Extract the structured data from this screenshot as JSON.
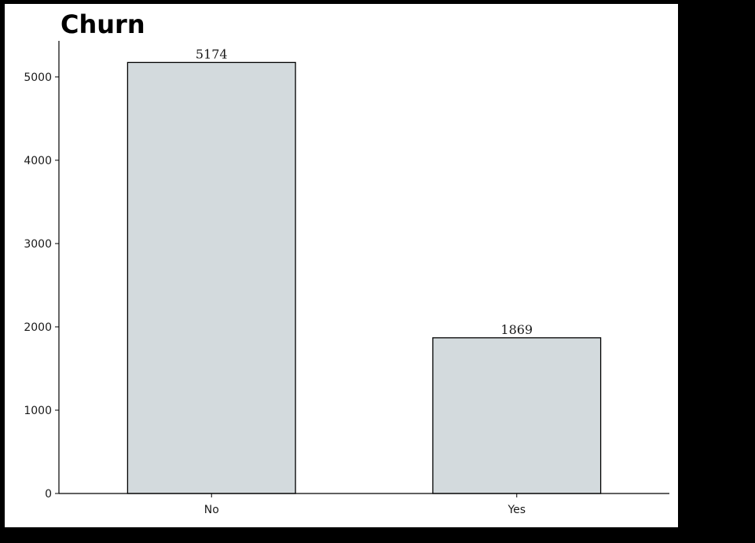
{
  "chart_data": {
    "type": "bar",
    "title": "Churn",
    "categories": [
      "No",
      "Yes"
    ],
    "values": [
      5174,
      1869
    ],
    "data_labels": [
      "5174",
      "1869"
    ],
    "ylim": [
      0,
      5433
    ],
    "yticks": [
      0,
      1000,
      2000,
      3000,
      4000,
      5000
    ],
    "ytick_labels": [
      "0",
      "1000",
      "2000",
      "3000",
      "4000",
      "5000"
    ],
    "xlabel": "",
    "ylabel": "",
    "bar_color": "#d3dadd",
    "edge_color": "#000000",
    "grid": false,
    "legend": false
  }
}
